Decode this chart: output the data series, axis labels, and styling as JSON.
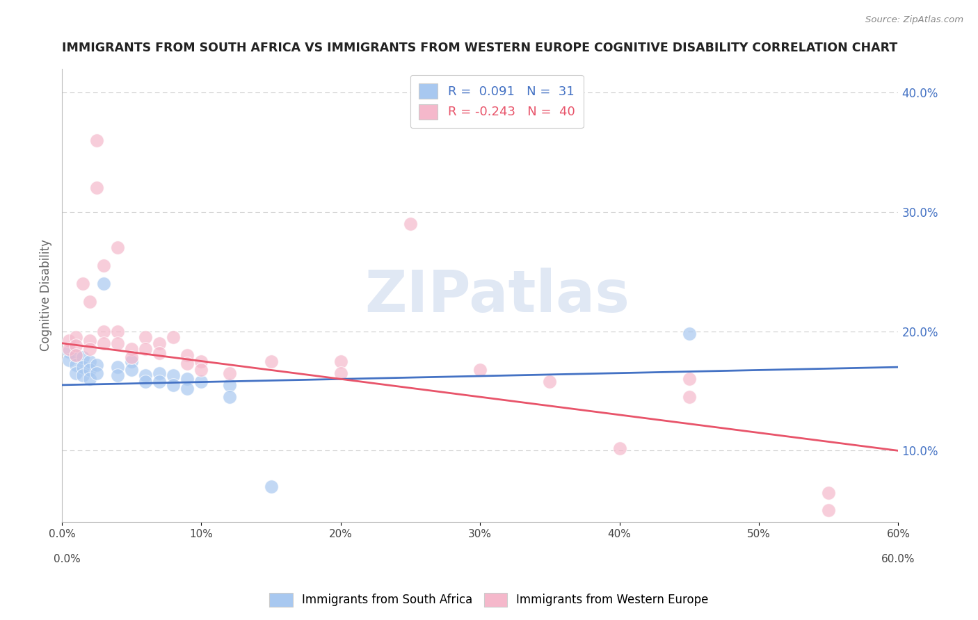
{
  "title": "IMMIGRANTS FROM SOUTH AFRICA VS IMMIGRANTS FROM WESTERN EUROPE COGNITIVE DISABILITY CORRELATION CHART",
  "source_text": "Source: ZipAtlas.com",
  "ylabel": "Cognitive Disability",
  "xlim": [
    0.0,
    0.6
  ],
  "ylim": [
    0.04,
    0.42
  ],
  "xticks": [
    0.0,
    0.1,
    0.2,
    0.3,
    0.4,
    0.5,
    0.6
  ],
  "yticks_right": [
    0.1,
    0.2,
    0.3,
    0.4
  ],
  "blue_color": "#a8c8f0",
  "pink_color": "#f5b8cb",
  "blue_line_color": "#4472c4",
  "pink_line_color": "#e8546a",
  "R_blue": 0.091,
  "N_blue": 31,
  "R_pink": -0.243,
  "N_pink": 40,
  "legend_color_blue": "#4472c4",
  "legend_color_pink": "#e8546a",
  "watermark_text": "ZIPatlas",
  "blue_scatter": [
    [
      0.005,
      0.183
    ],
    [
      0.005,
      0.176
    ],
    [
      0.01,
      0.18
    ],
    [
      0.01,
      0.172
    ],
    [
      0.01,
      0.165
    ],
    [
      0.015,
      0.178
    ],
    [
      0.015,
      0.17
    ],
    [
      0.015,
      0.163
    ],
    [
      0.02,
      0.175
    ],
    [
      0.02,
      0.168
    ],
    [
      0.02,
      0.16
    ],
    [
      0.025,
      0.172
    ],
    [
      0.025,
      0.165
    ],
    [
      0.03,
      0.24
    ],
    [
      0.04,
      0.17
    ],
    [
      0.04,
      0.163
    ],
    [
      0.05,
      0.175
    ],
    [
      0.05,
      0.168
    ],
    [
      0.06,
      0.163
    ],
    [
      0.06,
      0.158
    ],
    [
      0.07,
      0.165
    ],
    [
      0.07,
      0.158
    ],
    [
      0.08,
      0.163
    ],
    [
      0.08,
      0.155
    ],
    [
      0.09,
      0.16
    ],
    [
      0.09,
      0.152
    ],
    [
      0.1,
      0.158
    ],
    [
      0.12,
      0.155
    ],
    [
      0.12,
      0.145
    ],
    [
      0.45,
      0.198
    ],
    [
      0.15,
      0.07
    ]
  ],
  "pink_scatter": [
    [
      0.005,
      0.192
    ],
    [
      0.005,
      0.185
    ],
    [
      0.01,
      0.195
    ],
    [
      0.01,
      0.188
    ],
    [
      0.01,
      0.18
    ],
    [
      0.015,
      0.24
    ],
    [
      0.02,
      0.225
    ],
    [
      0.02,
      0.192
    ],
    [
      0.02,
      0.185
    ],
    [
      0.025,
      0.36
    ],
    [
      0.025,
      0.32
    ],
    [
      0.03,
      0.255
    ],
    [
      0.03,
      0.2
    ],
    [
      0.03,
      0.19
    ],
    [
      0.04,
      0.27
    ],
    [
      0.04,
      0.2
    ],
    [
      0.04,
      0.19
    ],
    [
      0.05,
      0.185
    ],
    [
      0.05,
      0.178
    ],
    [
      0.06,
      0.195
    ],
    [
      0.06,
      0.185
    ],
    [
      0.07,
      0.19
    ],
    [
      0.07,
      0.182
    ],
    [
      0.08,
      0.195
    ],
    [
      0.09,
      0.18
    ],
    [
      0.09,
      0.173
    ],
    [
      0.1,
      0.175
    ],
    [
      0.1,
      0.168
    ],
    [
      0.12,
      0.165
    ],
    [
      0.15,
      0.175
    ],
    [
      0.2,
      0.175
    ],
    [
      0.2,
      0.165
    ],
    [
      0.25,
      0.29
    ],
    [
      0.3,
      0.168
    ],
    [
      0.35,
      0.158
    ],
    [
      0.4,
      0.102
    ],
    [
      0.45,
      0.16
    ],
    [
      0.45,
      0.145
    ],
    [
      0.55,
      0.065
    ],
    [
      0.55,
      0.05
    ]
  ],
  "background_color": "#ffffff",
  "grid_color": "#cccccc",
  "title_color": "#222222",
  "axis_label_color": "#666666",
  "tick_color_right": "#4472c4",
  "tick_color_x": "#444444"
}
